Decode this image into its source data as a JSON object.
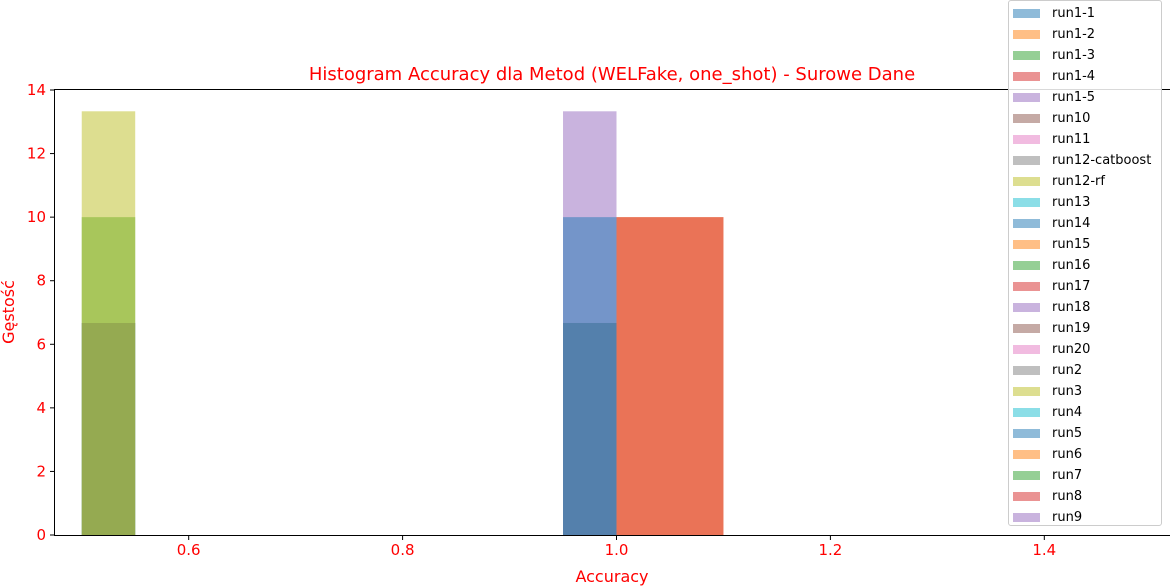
{
  "chart_data": {
    "type": "bar",
    "title": "Histogram Accuracy dla Metod (WELFake, one_shot) - Surowe Dane",
    "xlabel": "Accuracy",
    "ylabel": "Gęstość",
    "xlim": [
      0.475,
      1.525
    ],
    "ylim": [
      0,
      14
    ],
    "xticks": [
      "0.6",
      "0.8",
      "1.0",
      "1.2",
      "1.4"
    ],
    "yticks": [
      "0",
      "2",
      "4",
      "6",
      "8",
      "10",
      "12",
      "14"
    ],
    "grid": false,
    "legend_position": "top-right",
    "label_color": "#ff0000",
    "series": [
      {
        "name": "run1-1",
        "color": "#1f77b4",
        "bars": []
      },
      {
        "name": "run1-2",
        "color": "#ff7f0e",
        "bars": []
      },
      {
        "name": "run1-3",
        "color": "#2ca02c",
        "bars": []
      },
      {
        "name": "run1-4",
        "color": "#d62728",
        "bars": []
      },
      {
        "name": "run1-5",
        "color": "#9467bd",
        "bars": []
      },
      {
        "name": "run10",
        "color": "#8c564b",
        "bars": []
      },
      {
        "name": "run11",
        "color": "#e377c2",
        "bars": []
      },
      {
        "name": "run12-catboost",
        "color": "#7f7f7f",
        "bars": []
      },
      {
        "name": "run12-rf",
        "color": "#bcbd22",
        "bars": []
      },
      {
        "name": "run13",
        "color": "#17becf",
        "bars": []
      },
      {
        "name": "run14",
        "color": "#1f77b4",
        "bars": [
          {
            "x0": 0.5,
            "x1": 0.55,
            "y": 6.67
          },
          {
            "x0": 0.95,
            "x1": 1.0,
            "y": 6.67
          }
        ]
      },
      {
        "name": "run15",
        "color": "#ff7f0e",
        "bars": [
          {
            "x0": 1.0,
            "x1": 1.1,
            "y": 10
          }
        ]
      },
      {
        "name": "run16",
        "color": "#2ca02c",
        "bars": [
          {
            "x0": 0.5,
            "x1": 0.55,
            "y": 10
          }
        ]
      },
      {
        "name": "run17",
        "color": "#d62728",
        "bars": [
          {
            "x0": 1.0,
            "x1": 1.1,
            "y": 10
          }
        ]
      },
      {
        "name": "run18",
        "color": "#9467bd",
        "bars": [
          {
            "x0": 0.95,
            "x1": 1.0,
            "y": 13.33
          }
        ]
      },
      {
        "name": "run19",
        "color": "#8c564b",
        "bars": []
      },
      {
        "name": "run20",
        "color": "#e377c2",
        "bars": []
      },
      {
        "name": "run2",
        "color": "#7f7f7f",
        "bars": [
          {
            "x0": 0.5,
            "x1": 0.55,
            "y": 6.67
          },
          {
            "x0": 0.95,
            "x1": 1.0,
            "y": 6.67
          }
        ]
      },
      {
        "name": "run3",
        "color": "#bcbd22",
        "bars": [
          {
            "x0": 0.5,
            "x1": 0.55,
            "y": 13.33
          }
        ]
      },
      {
        "name": "run4",
        "color": "#17becf",
        "bars": []
      },
      {
        "name": "run5",
        "color": "#1f77b4",
        "bars": [
          {
            "x0": 0.95,
            "x1": 1.0,
            "y": 10
          }
        ]
      },
      {
        "name": "run6",
        "color": "#ff7f0e",
        "bars": []
      },
      {
        "name": "run7",
        "color": "#2ca02c",
        "bars": []
      },
      {
        "name": "run8",
        "color": "#d62728",
        "bars": []
      },
      {
        "name": "run9",
        "color": "#9467bd",
        "bars": []
      }
    ]
  }
}
